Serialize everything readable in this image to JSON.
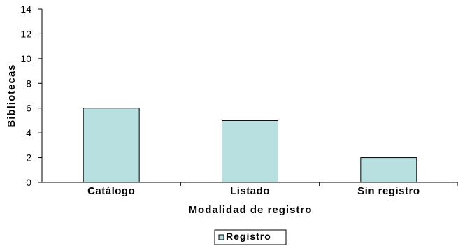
{
  "chart_data": {
    "type": "bar",
    "title": "",
    "xlabel": "Modalidad de registro",
    "ylabel": "Bibliotecas",
    "categories": [
      "Catálogo",
      "Listado",
      "Sin registro"
    ],
    "series": [
      {
        "name": "Registro",
        "values": [
          6,
          5,
          2
        ]
      }
    ],
    "ylim": [
      0,
      14
    ],
    "yticks": [
      "0",
      "2",
      "4",
      "6",
      "8",
      "10",
      "12",
      "14"
    ],
    "grid": false,
    "legend": "bottom-center",
    "colors": {
      "bar_fill": "#b9e0e0",
      "bar_stroke": "#000000",
      "axis": "#000000"
    }
  }
}
